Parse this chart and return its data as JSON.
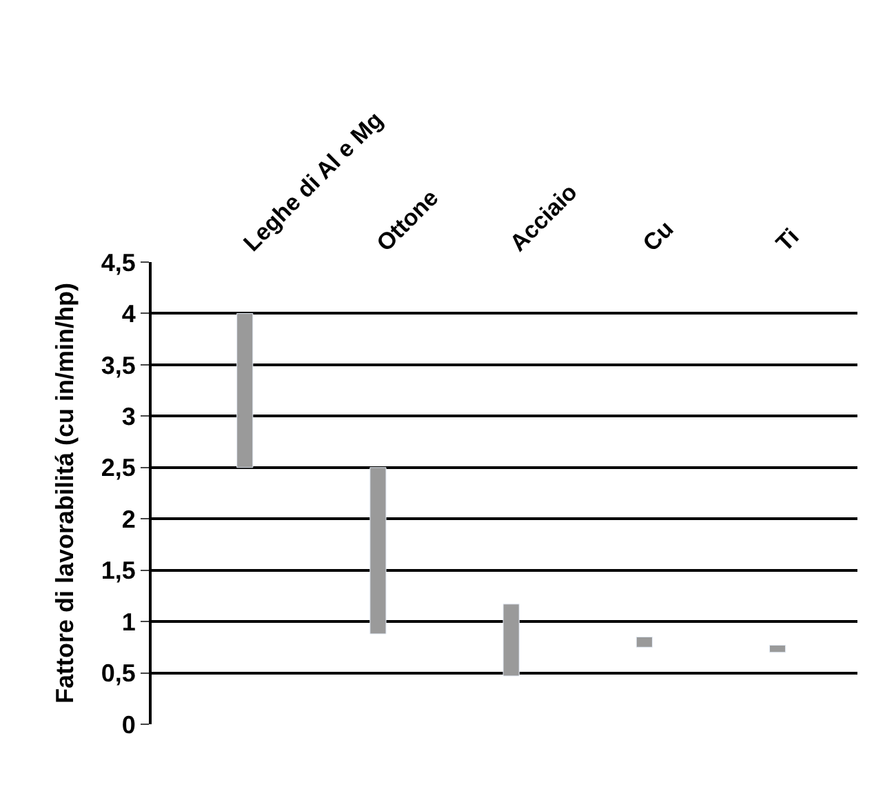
{
  "chart_data": {
    "type": "bar",
    "ylabel": "Fattore di lavorabilitá (cu in/min/hp)",
    "categories": [
      "Leghe di Al e Mg",
      "Ottone",
      "Acciaio",
      "Cu",
      "Ti"
    ],
    "base": [
      2.5,
      0.88,
      0.47,
      0.75,
      0.7
    ],
    "values": [
      1.5,
      1.62,
      0.7,
      0.1,
      0.07
    ],
    "color": "#9a9a9a",
    "ylim": [
      0,
      4.5
    ],
    "yticks": [
      0,
      {
        "value": 0.5,
        "label": "0,5"
      },
      1,
      {
        "value": 1.5,
        "label": "1,5"
      },
      2,
      {
        "value": 2.5,
        "label": "2,5"
      },
      3,
      {
        "value": 3.5,
        "label": "3,5"
      },
      4,
      {
        "value": 4.5,
        "label": "4,5"
      }
    ],
    "grid": "y",
    "legend": false
  }
}
